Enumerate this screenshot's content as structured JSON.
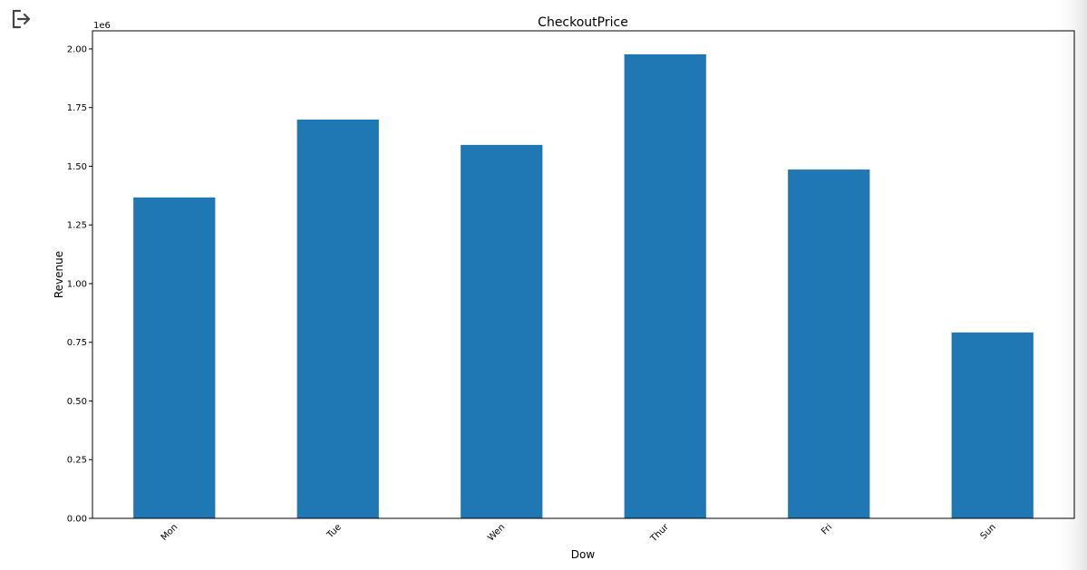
{
  "chart_data": {
    "type": "bar",
    "title": "CheckoutPrice",
    "x_label": "Dow",
    "y_label": "Revenue",
    "offset_text": "1e6",
    "categories": [
      "Mon",
      "Tue",
      "Wen",
      "Thur",
      "Fri",
      "Sun"
    ],
    "values": [
      1367000,
      1699000,
      1591000,
      1977000,
      1486000,
      792000
    ],
    "color": "#1f77b4",
    "ylim": [
      0,
      2077000
    ],
    "yticks": [
      {
        "value": 0,
        "label": "0.00"
      },
      {
        "value": 250000,
        "label": "0.25"
      },
      {
        "value": 500000,
        "label": "0.50"
      },
      {
        "value": 750000,
        "label": "0.75"
      },
      {
        "value": 1000000,
        "label": "1.00"
      },
      {
        "value": 1250000,
        "label": "1.25"
      },
      {
        "value": 1500000,
        "label": "1.50"
      },
      {
        "value": 1750000,
        "label": "1.75"
      },
      {
        "value": 2000000,
        "label": "2.00"
      }
    ],
    "grid": false
  }
}
